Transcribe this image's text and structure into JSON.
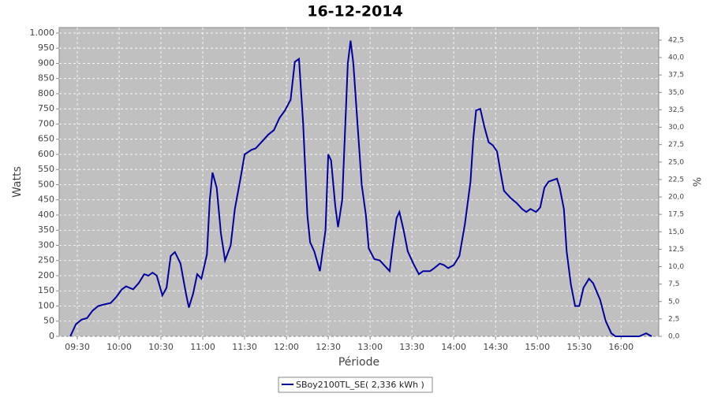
{
  "chart_data": {
    "type": "line",
    "title": "16-12-2014",
    "x_label": "Période",
    "y_label": "Watts",
    "y2_label": "%",
    "grid": true,
    "legend": "bottom",
    "x": [
      565,
      569,
      573,
      577,
      581,
      585,
      589,
      594,
      598,
      602,
      605,
      610,
      614,
      618,
      621,
      624,
      627,
      631,
      634,
      637,
      640,
      644,
      648,
      650,
      653,
      656,
      659,
      663,
      665,
      667,
      670,
      673,
      676,
      680,
      683,
      687,
      690,
      695,
      698,
      702,
      707,
      711,
      715,
      719,
      723,
      726,
      729,
      732,
      735,
      737,
      740,
      744,
      748,
      750,
      752,
      755,
      757,
      760,
      764,
      766,
      768,
      771,
      774,
      777,
      779,
      783,
      787,
      791,
      794,
      796,
      799,
      801,
      804,
      807,
      811,
      815,
      818,
      823,
      826,
      830,
      833,
      836,
      840,
      844,
      848,
      852,
      854,
      856,
      859,
      862,
      865,
      868,
      871,
      874,
      876,
      881,
      885,
      889,
      892,
      895,
      899,
      902,
      905,
      908,
      911,
      914,
      916,
      919,
      921,
      924,
      927,
      930,
      933,
      937,
      940,
      945,
      949,
      953,
      956,
      967,
      973,
      978,
      980,
      982
    ],
    "series": [
      {
        "name": "SBoy2100TL_SE( 2,336 kWh )",
        "color": "#0000a0",
        "values": [
          0,
          40,
          55,
          60,
          85,
          100,
          105,
          110,
          130,
          155,
          165,
          155,
          175,
          205,
          200,
          210,
          200,
          135,
          160,
          265,
          278,
          240,
          140,
          95,
          140,
          205,
          190,
          270,
          450,
          540,
          490,
          340,
          250,
          300,
          420,
          520,
          600,
          615,
          620,
          640,
          665,
          680,
          720,
          745,
          780,
          905,
          915,
          700,
          400,
          310,
          280,
          215,
          350,
          600,
          580,
          430,
          360,
          450,
          900,
          975,
          900,
          700,
          500,
          400,
          290,
          255,
          250,
          230,
          215,
          290,
          390,
          410,
          350,
          280,
          240,
          205,
          215,
          215,
          225,
          240,
          235,
          225,
          235,
          265,
          370,
          510,
          650,
          745,
          750,
          690,
          640,
          630,
          610,
          530,
          480,
          455,
          440,
          420,
          410,
          420,
          410,
          425,
          490,
          510,
          515,
          520,
          490,
          420,
          280,
          170,
          100,
          100,
          160,
          190,
          175,
          120,
          50,
          10,
          0,
          0,
          0,
          10,
          5,
          0
        ]
      }
    ],
    "xlim": [
      557,
      987
    ],
    "xticks": [
      {
        "value": 570,
        "label": "09:30"
      },
      {
        "value": 600,
        "label": "10:00"
      },
      {
        "value": 630,
        "label": "10:30"
      },
      {
        "value": 660,
        "label": "11:00"
      },
      {
        "value": 690,
        "label": "11:30"
      },
      {
        "value": 720,
        "label": "12:00"
      },
      {
        "value": 750,
        "label": "12:30"
      },
      {
        "value": 780,
        "label": "13:00"
      },
      {
        "value": 810,
        "label": "13:30"
      },
      {
        "value": 840,
        "label": "14:00"
      },
      {
        "value": 870,
        "label": "14:30"
      },
      {
        "value": 900,
        "label": "15:00"
      },
      {
        "value": 930,
        "label": "15:30"
      },
      {
        "value": 960,
        "label": "16:00"
      }
    ],
    "ylim": [
      0,
      1018
    ],
    "yticks": [
      0,
      50,
      100,
      150,
      200,
      250,
      300,
      350,
      400,
      450,
      500,
      550,
      600,
      650,
      700,
      750,
      800,
      850,
      900,
      950,
      {
        "value": 1000,
        "label": "1.000"
      }
    ],
    "y2lim": [
      0,
      44.3
    ],
    "y2ticks": [
      {
        "value": 0,
        "label": "0,0"
      },
      {
        "value": 2.5,
        "label": "2,5"
      },
      {
        "value": 5,
        "label": "5,0"
      },
      {
        "value": 7.5,
        "label": "7,5"
      },
      {
        "value": 10,
        "label": "10,0"
      },
      {
        "value": 12.5,
        "label": "12,5"
      },
      {
        "value": 15,
        "label": "15,0"
      },
      {
        "value": 17.5,
        "label": "17,5"
      },
      {
        "value": 20,
        "label": "20,0"
      },
      {
        "value": 22.5,
        "label": "22,5"
      },
      {
        "value": 25,
        "label": "25,0"
      },
      {
        "value": 27.5,
        "label": "27,5"
      },
      {
        "value": 30,
        "label": "30,0"
      },
      {
        "value": 32.5,
        "label": "32,5"
      },
      {
        "value": 35,
        "label": "35,0"
      },
      {
        "value": 37.5,
        "label": "37,5"
      },
      {
        "value": 40,
        "label": "40,0"
      },
      {
        "value": 42.5,
        "label": "42,5"
      }
    ]
  }
}
